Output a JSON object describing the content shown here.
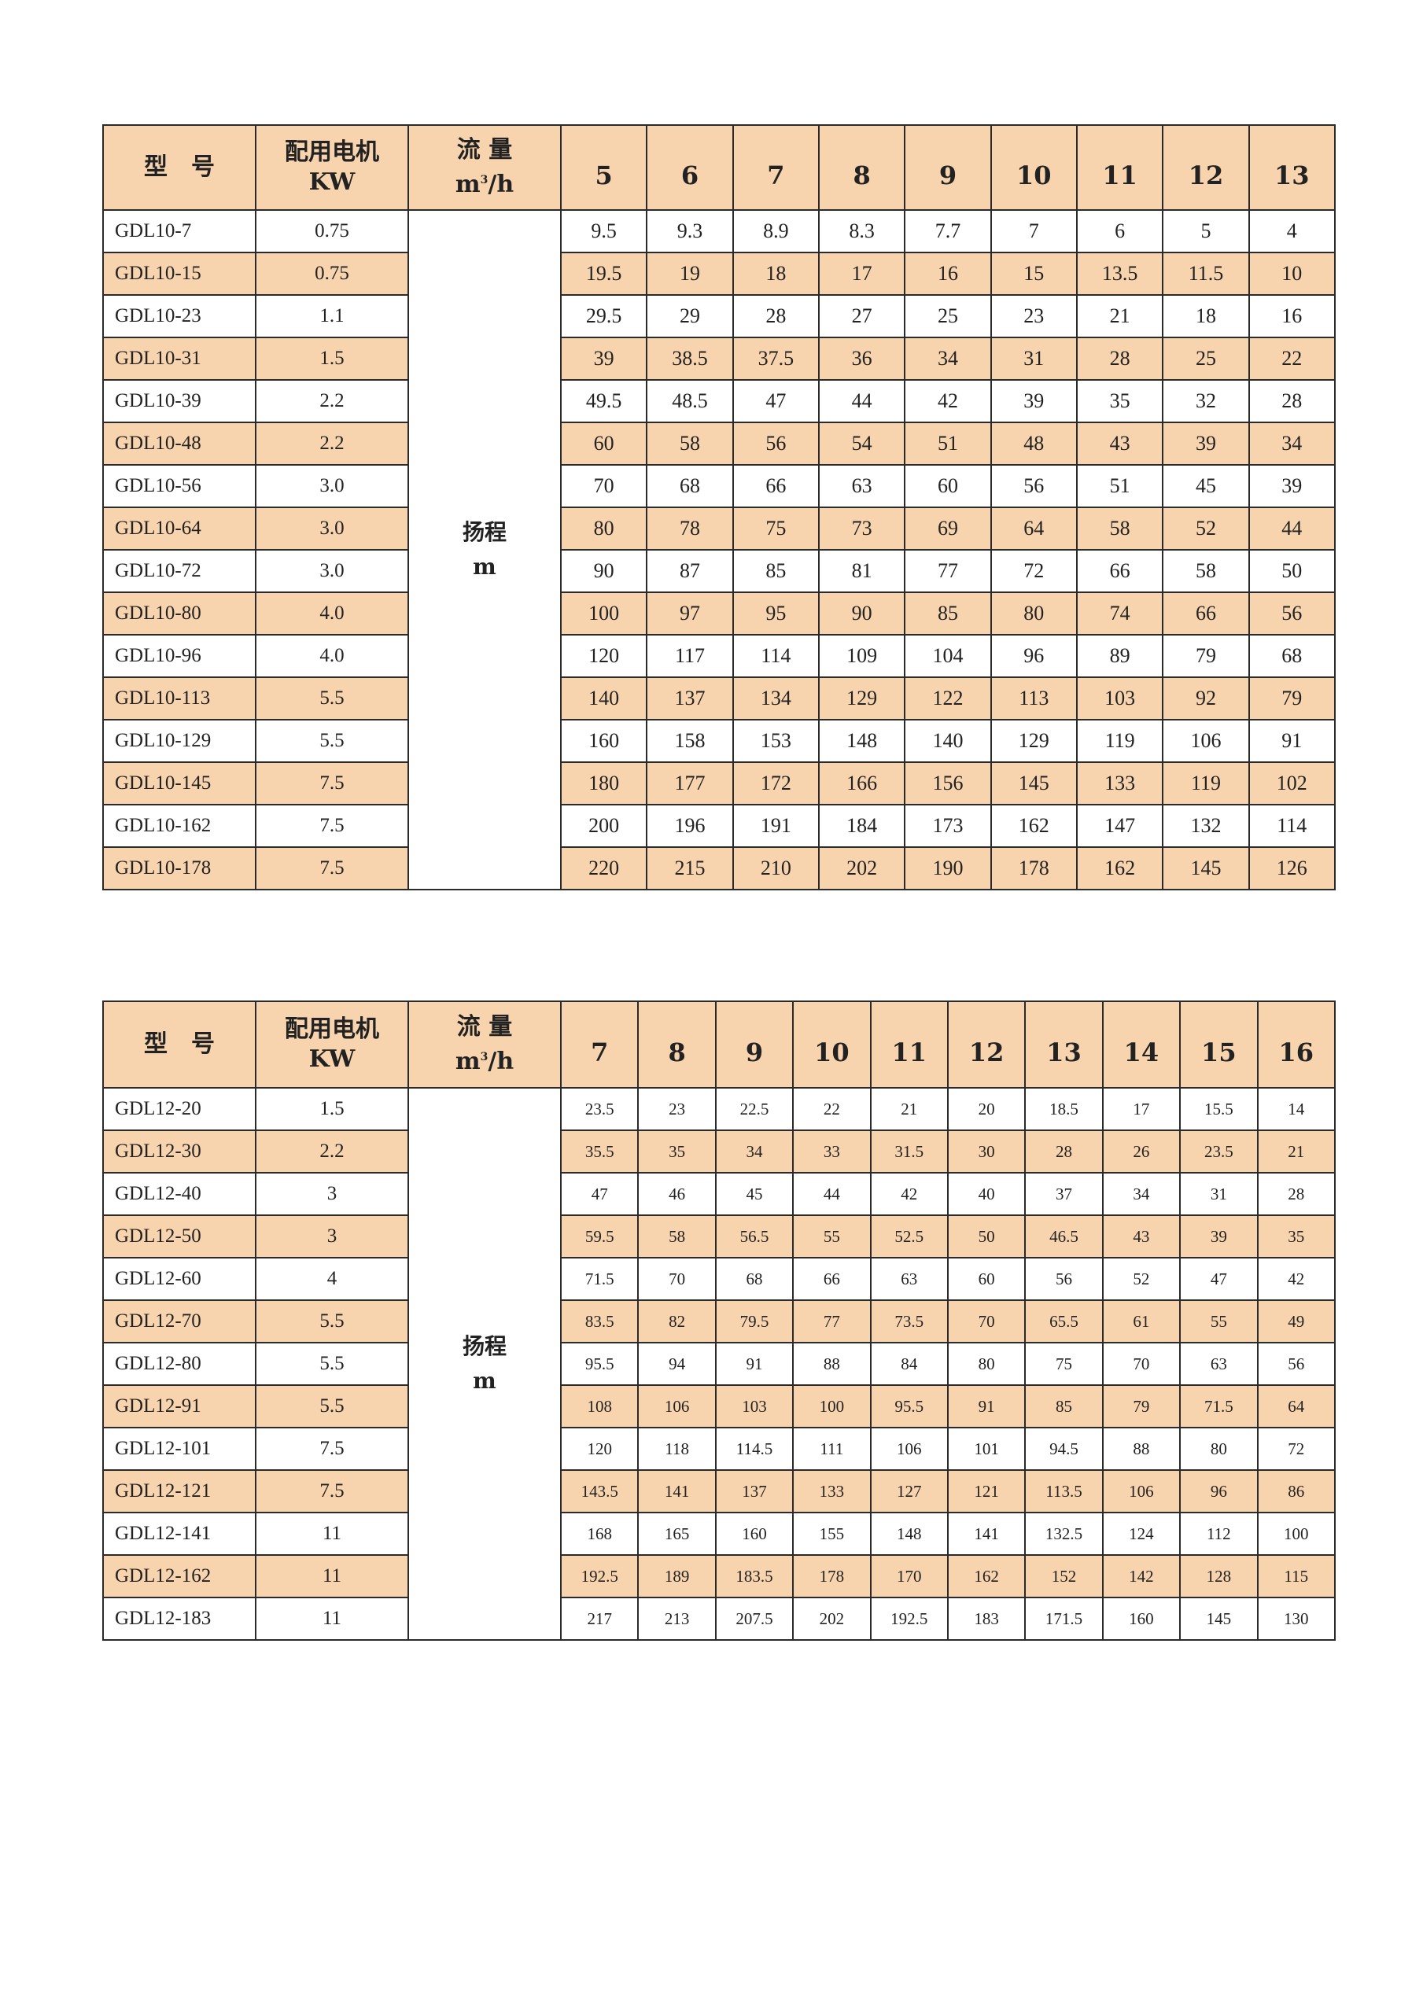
{
  "colors": {
    "header_bg": "#F8D4AE",
    "shade_bg": "#F8D4AE",
    "border": "#2a2a2a"
  },
  "tables": [
    {
      "header": {
        "model": "型　号",
        "motor": "配用电机",
        "motor_unit": "KW",
        "flow": "流 量",
        "flow_unit_m": "m",
        "flow_unit_sup": "3",
        "flow_unit_rest": "/h",
        "head": "扬程",
        "head_unit": "m"
      },
      "flows": [
        "5",
        "6",
        "7",
        "8",
        "9",
        "10",
        "11",
        "12",
        "13"
      ],
      "rows": [
        {
          "model": "GDL10-7",
          "kw": "0.75",
          "values": [
            "9.5",
            "9.3",
            "8.9",
            "8.3",
            "7.7",
            "7",
            "6",
            "5",
            "4"
          ]
        },
        {
          "model": "GDL10-15",
          "kw": "0.75",
          "values": [
            "19.5",
            "19",
            "18",
            "17",
            "16",
            "15",
            "13.5",
            "11.5",
            "10"
          ]
        },
        {
          "model": "GDL10-23",
          "kw": "1.1",
          "values": [
            "29.5",
            "29",
            "28",
            "27",
            "25",
            "23",
            "21",
            "18",
            "16"
          ]
        },
        {
          "model": "GDL10-31",
          "kw": "1.5",
          "values": [
            "39",
            "38.5",
            "37.5",
            "36",
            "34",
            "31",
            "28",
            "25",
            "22"
          ]
        },
        {
          "model": "GDL10-39",
          "kw": "2.2",
          "values": [
            "49.5",
            "48.5",
            "47",
            "44",
            "42",
            "39",
            "35",
            "32",
            "28"
          ]
        },
        {
          "model": "GDL10-48",
          "kw": "2.2",
          "values": [
            "60",
            "58",
            "56",
            "54",
            "51",
            "48",
            "43",
            "39",
            "34"
          ]
        },
        {
          "model": "GDL10-56",
          "kw": "3.0",
          "values": [
            "70",
            "68",
            "66",
            "63",
            "60",
            "56",
            "51",
            "45",
            "39"
          ]
        },
        {
          "model": "GDL10-64",
          "kw": "3.0",
          "values": [
            "80",
            "78",
            "75",
            "73",
            "69",
            "64",
            "58",
            "52",
            "44"
          ]
        },
        {
          "model": "GDL10-72",
          "kw": "3.0",
          "values": [
            "90",
            "87",
            "85",
            "81",
            "77",
            "72",
            "66",
            "58",
            "50"
          ]
        },
        {
          "model": "GDL10-80",
          "kw": "4.0",
          "values": [
            "100",
            "97",
            "95",
            "90",
            "85",
            "80",
            "74",
            "66",
            "56"
          ]
        },
        {
          "model": "GDL10-96",
          "kw": "4.0",
          "values": [
            "120",
            "117",
            "114",
            "109",
            "104",
            "96",
            "89",
            "79",
            "68"
          ]
        },
        {
          "model": "GDL10-113",
          "kw": "5.5",
          "values": [
            "140",
            "137",
            "134",
            "129",
            "122",
            "113",
            "103",
            "92",
            "79"
          ]
        },
        {
          "model": "GDL10-129",
          "kw": "5.5",
          "values": [
            "160",
            "158",
            "153",
            "148",
            "140",
            "129",
            "119",
            "106",
            "91"
          ]
        },
        {
          "model": "GDL10-145",
          "kw": "7.5",
          "values": [
            "180",
            "177",
            "172",
            "166",
            "156",
            "145",
            "133",
            "119",
            "102"
          ]
        },
        {
          "model": "GDL10-162",
          "kw": "7.5",
          "values": [
            "200",
            "196",
            "191",
            "184",
            "173",
            "162",
            "147",
            "132",
            "114"
          ]
        },
        {
          "model": "GDL10-178",
          "kw": "7.5",
          "values": [
            "220",
            "215",
            "210",
            "202",
            "190",
            "178",
            "162",
            "145",
            "126"
          ]
        }
      ]
    },
    {
      "header": {
        "model": "型　号",
        "motor": "配用电机",
        "motor_unit": "KW",
        "flow": "流 量",
        "flow_unit_m": "m",
        "flow_unit_sup": "3",
        "flow_unit_rest": "/h",
        "head": "扬程",
        "head_unit": "m"
      },
      "flows": [
        "7",
        "8",
        "9",
        "10",
        "11",
        "12",
        "13",
        "14",
        "15",
        "16"
      ],
      "rows": [
        {
          "model": "GDL12-20",
          "kw": "1.5",
          "values": [
            "23.5",
            "23",
            "22.5",
            "22",
            "21",
            "20",
            "18.5",
            "17",
            "15.5",
            "14"
          ]
        },
        {
          "model": "GDL12-30",
          "kw": "2.2",
          "values": [
            "35.5",
            "35",
            "34",
            "33",
            "31.5",
            "30",
            "28",
            "26",
            "23.5",
            "21"
          ]
        },
        {
          "model": "GDL12-40",
          "kw": "3",
          "values": [
            "47",
            "46",
            "45",
            "44",
            "42",
            "40",
            "37",
            "34",
            "31",
            "28"
          ]
        },
        {
          "model": "GDL12-50",
          "kw": "3",
          "values": [
            "59.5",
            "58",
            "56.5",
            "55",
            "52.5",
            "50",
            "46.5",
            "43",
            "39",
            "35"
          ]
        },
        {
          "model": "GDL12-60",
          "kw": "4",
          "values": [
            "71.5",
            "70",
            "68",
            "66",
            "63",
            "60",
            "56",
            "52",
            "47",
            "42"
          ]
        },
        {
          "model": "GDL12-70",
          "kw": "5.5",
          "values": [
            "83.5",
            "82",
            "79.5",
            "77",
            "73.5",
            "70",
            "65.5",
            "61",
            "55",
            "49"
          ]
        },
        {
          "model": "GDL12-80",
          "kw": "5.5",
          "values": [
            "95.5",
            "94",
            "91",
            "88",
            "84",
            "80",
            "75",
            "70",
            "63",
            "56"
          ]
        },
        {
          "model": "GDL12-91",
          "kw": "5.5",
          "values": [
            "108",
            "106",
            "103",
            "100",
            "95.5",
            "91",
            "85",
            "79",
            "71.5",
            "64"
          ]
        },
        {
          "model": "GDL12-101",
          "kw": "7.5",
          "values": [
            "120",
            "118",
            "114.5",
            "111",
            "106",
            "101",
            "94.5",
            "88",
            "80",
            "72"
          ]
        },
        {
          "model": "GDL12-121",
          "kw": "7.5",
          "values": [
            "143.5",
            "141",
            "137",
            "133",
            "127",
            "121",
            "113.5",
            "106",
            "96",
            "86"
          ]
        },
        {
          "model": "GDL12-141",
          "kw": "11",
          "values": [
            "168",
            "165",
            "160",
            "155",
            "148",
            "141",
            "132.5",
            "124",
            "112",
            "100"
          ]
        },
        {
          "model": "GDL12-162",
          "kw": "11",
          "values": [
            "192.5",
            "189",
            "183.5",
            "178",
            "170",
            "162",
            "152",
            "142",
            "128",
            "115"
          ]
        },
        {
          "model": "GDL12-183",
          "kw": "11",
          "values": [
            "217",
            "213",
            "207.5",
            "202",
            "192.5",
            "183",
            "171.5",
            "160",
            "145",
            "130"
          ]
        }
      ]
    }
  ]
}
